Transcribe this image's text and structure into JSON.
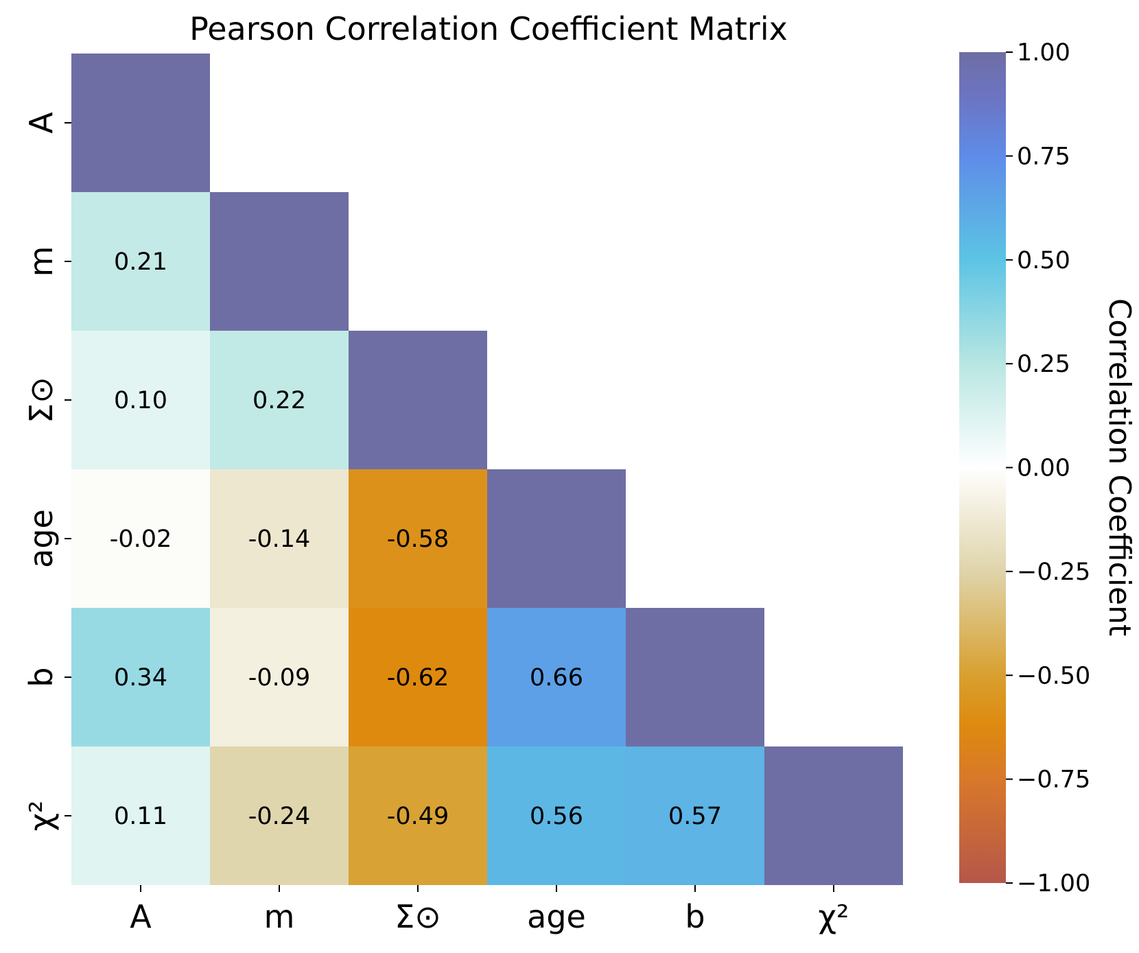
{
  "chart_data": {
    "type": "heatmap",
    "title": "Pearson Correlation Coefficient Matrix",
    "x_labels": [
      "A",
      "m",
      "Σ⊙",
      "age",
      "b",
      "χ²"
    ],
    "y_labels": [
      "A",
      "m",
      "Σ⊙",
      "age",
      "b",
      "χ²"
    ],
    "mask": "upper triangle (diagonal shown without label)",
    "values": [
      [
        1.0,
        null,
        null,
        null,
        null,
        null
      ],
      [
        0.21,
        1.0,
        null,
        null,
        null,
        null
      ],
      [
        0.1,
        0.22,
        1.0,
        null,
        null,
        null
      ],
      [
        -0.02,
        -0.14,
        -0.58,
        1.0,
        null,
        null
      ],
      [
        0.34,
        -0.09,
        -0.62,
        0.66,
        1.0,
        null
      ],
      [
        0.11,
        -0.24,
        -0.49,
        0.56,
        0.57,
        1.0
      ]
    ],
    "cell_labels": [
      [
        "",
        "",
        "",
        "",
        "",
        ""
      ],
      [
        "0.21",
        "",
        "",
        "",
        "",
        ""
      ],
      [
        "0.10",
        "0.22",
        "",
        "",
        "",
        ""
      ],
      [
        "-0.02",
        "-0.14",
        "-0.58",
        "",
        "",
        ""
      ],
      [
        "0.34",
        "-0.09",
        "-0.62",
        "0.66",
        "",
        ""
      ],
      [
        "0.11",
        "-0.24",
        "-0.49",
        "0.56",
        "0.57",
        ""
      ]
    ],
    "colorbar": {
      "label": "Correlation Coefficient",
      "range": [
        -1.0,
        1.0
      ],
      "ticks": [
        1.0,
        0.75,
        0.5,
        0.25,
        0.0,
        -0.25,
        -0.5,
        -0.75,
        -1.0
      ],
      "tick_labels": [
        "1.00",
        "0.75",
        "0.50",
        "0.25",
        "0.00",
        "−0.25",
        "−0.50",
        "−0.75",
        "−1.00"
      ],
      "colors": {
        "-1.00": "#b5574a",
        "-0.75": "#d8782a",
        "-0.62": "#de8a0f",
        "-0.50": "#d8a030",
        "-0.25": "#dfd4aa",
        "0.00": "#ffffff",
        "0.25": "#b8e6e2",
        "0.50": "#5cc4e4",
        "0.75": "#5e8ce8",
        "0.90": "#6d73c0",
        "1.00": "#6e6ea4"
      }
    }
  }
}
